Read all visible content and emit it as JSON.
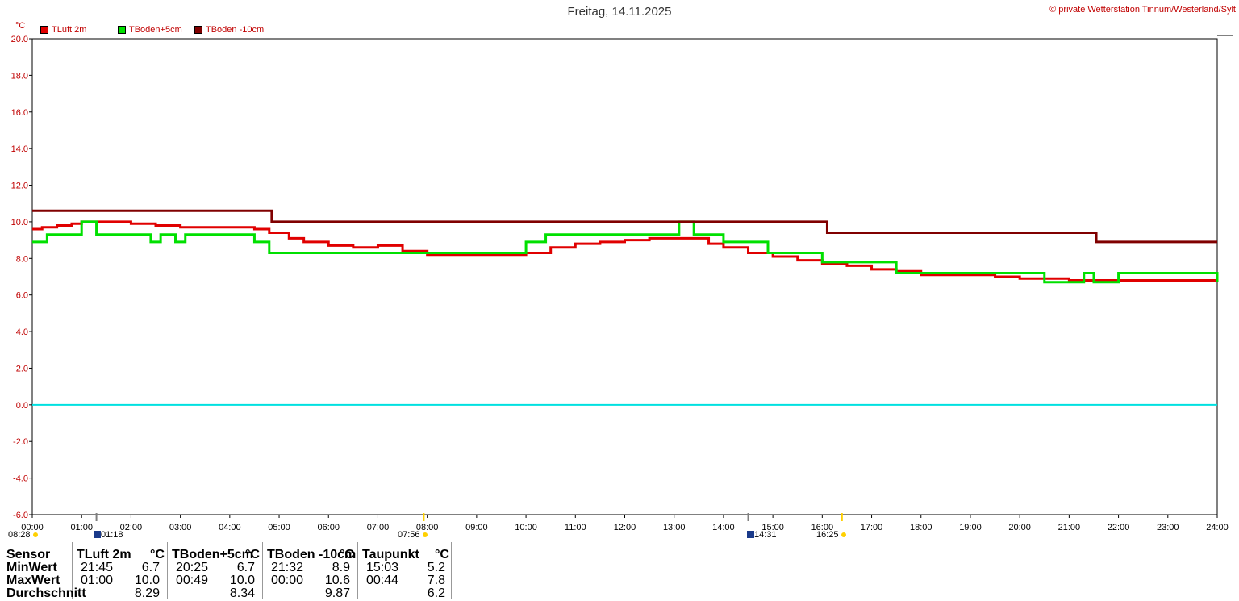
{
  "title": "Freitag, 14.11.2025",
  "copyright": "© private Wetterstation Tinnum/Westerland/Sylt",
  "unit_label": "°C",
  "legend": [
    {
      "label": "TLuft 2m",
      "color": "#e00000"
    },
    {
      "label": "TBoden+5cm",
      "color": "#00e000"
    },
    {
      "label": "TBoden -10cm",
      "color": "#800000"
    }
  ],
  "sun_marks": {
    "sunrise_prev": "08:28",
    "moonset": "01:18",
    "sunrise": "07:56",
    "moonrise": "14:31",
    "sunset": "16:25"
  },
  "table": {
    "headers": [
      "Sensor",
      "TLuft 2m",
      "°C",
      "TBoden+5cm",
      "°C",
      "TBoden -10cm",
      "°C",
      "Taupunkt",
      "°C"
    ],
    "rows": [
      {
        "label": "MinWert",
        "cells": [
          "21:45",
          "6.7",
          "20:25",
          "6.7",
          "21:32",
          "8.9",
          "15:03",
          "5.2"
        ]
      },
      {
        "label": "MaxWert",
        "cells": [
          "01:00",
          "10.0",
          "00:49",
          "10.0",
          "00:00",
          "10.6",
          "00:44",
          "7.8"
        ]
      },
      {
        "label": "Durchschnitt",
        "cells": [
          "",
          "8.29",
          "",
          "8.34",
          "",
          "9.87",
          "",
          "6.2"
        ]
      }
    ]
  },
  "chart_data": {
    "type": "line",
    "xlabel": "",
    "ylabel": "°C",
    "xlim": [
      0,
      24
    ],
    "ylim": [
      -6,
      20
    ],
    "grid": true,
    "legend_position": "top-left",
    "x_ticks": [
      "00:00",
      "01:00",
      "02:00",
      "03:00",
      "04:00",
      "05:00",
      "06:00",
      "07:00",
      "08:00",
      "09:00",
      "10:00",
      "11:00",
      "12:00",
      "13:00",
      "14:00",
      "15:00",
      "16:00",
      "17:00",
      "18:00",
      "19:00",
      "20:00",
      "21:00",
      "22:00",
      "23:00",
      "24:00"
    ],
    "y_ticks": [
      "20.0",
      "18.0",
      "16.0",
      "14.0",
      "12.0",
      "10.0",
      "8.0",
      "6.0",
      "4.0",
      "2.0",
      "0.0",
      "-2.0",
      "-4.0",
      "-6.0"
    ],
    "zero_line": 0.0,
    "series": [
      {
        "name": "TLuft 2m",
        "color": "#e00000",
        "x": [
          0.0,
          0.2,
          0.5,
          0.8,
          1.0,
          1.5,
          2.0,
          2.5,
          3.0,
          3.5,
          4.0,
          4.5,
          4.8,
          5.2,
          5.5,
          6.0,
          6.5,
          7.0,
          7.5,
          8.0,
          8.5,
          9.0,
          9.5,
          10.0,
          10.5,
          11.0,
          11.5,
          12.0,
          12.5,
          13.0,
          13.3,
          13.7,
          14.0,
          14.5,
          15.0,
          15.5,
          16.0,
          16.5,
          17.0,
          17.5,
          18.0,
          18.5,
          19.0,
          19.5,
          20.0,
          20.5,
          21.0,
          21.5,
          22.0,
          22.5,
          23.0,
          23.5,
          24.0
        ],
        "y": [
          9.6,
          9.7,
          9.8,
          9.9,
          10.0,
          10.0,
          9.9,
          9.8,
          9.7,
          9.7,
          9.7,
          9.6,
          9.4,
          9.1,
          8.9,
          8.7,
          8.6,
          8.7,
          8.4,
          8.2,
          8.2,
          8.2,
          8.2,
          8.3,
          8.6,
          8.8,
          8.9,
          9.0,
          9.1,
          9.1,
          9.1,
          8.8,
          8.6,
          8.3,
          8.1,
          7.9,
          7.7,
          7.6,
          7.4,
          7.3,
          7.1,
          7.1,
          7.1,
          7.0,
          6.9,
          6.9,
          6.8,
          6.8,
          6.8,
          6.8,
          6.8,
          6.8,
          6.8
        ]
      },
      {
        "name": "TBoden+5cm",
        "color": "#00e000",
        "x": [
          0.0,
          0.3,
          0.8,
          1.0,
          1.3,
          2.2,
          2.4,
          2.6,
          2.9,
          3.1,
          4.0,
          4.5,
          4.8,
          5.1,
          5.3,
          6.0,
          7.0,
          8.0,
          9.0,
          9.7,
          10.0,
          10.4,
          11.0,
          12.0,
          12.9,
          13.1,
          13.4,
          14.0,
          14.5,
          14.9,
          15.6,
          16.0,
          17.0,
          17.5,
          18.0,
          19.0,
          20.0,
          20.5,
          21.0,
          21.3,
          21.5,
          22.0,
          22.5,
          23.0,
          24.0
        ],
        "y": [
          8.9,
          9.3,
          9.3,
          10.0,
          9.3,
          9.3,
          8.9,
          9.3,
          8.9,
          9.3,
          9.3,
          8.9,
          8.3,
          8.3,
          8.3,
          8.3,
          8.3,
          8.3,
          8.3,
          8.3,
          8.9,
          9.3,
          9.3,
          9.3,
          9.3,
          10.0,
          9.3,
          8.9,
          8.9,
          8.3,
          8.3,
          7.8,
          7.8,
          7.2,
          7.2,
          7.2,
          7.2,
          6.7,
          6.7,
          7.2,
          6.7,
          7.2,
          7.2,
          7.2,
          6.7
        ]
      },
      {
        "name": "TBoden -10cm",
        "color": "#800000",
        "x": [
          0.0,
          4.85,
          4.85,
          16.1,
          16.1,
          21.55,
          21.55,
          24.0
        ],
        "y": [
          10.6,
          10.6,
          10.0,
          10.0,
          9.4,
          9.4,
          8.9,
          8.9
        ]
      }
    ]
  }
}
